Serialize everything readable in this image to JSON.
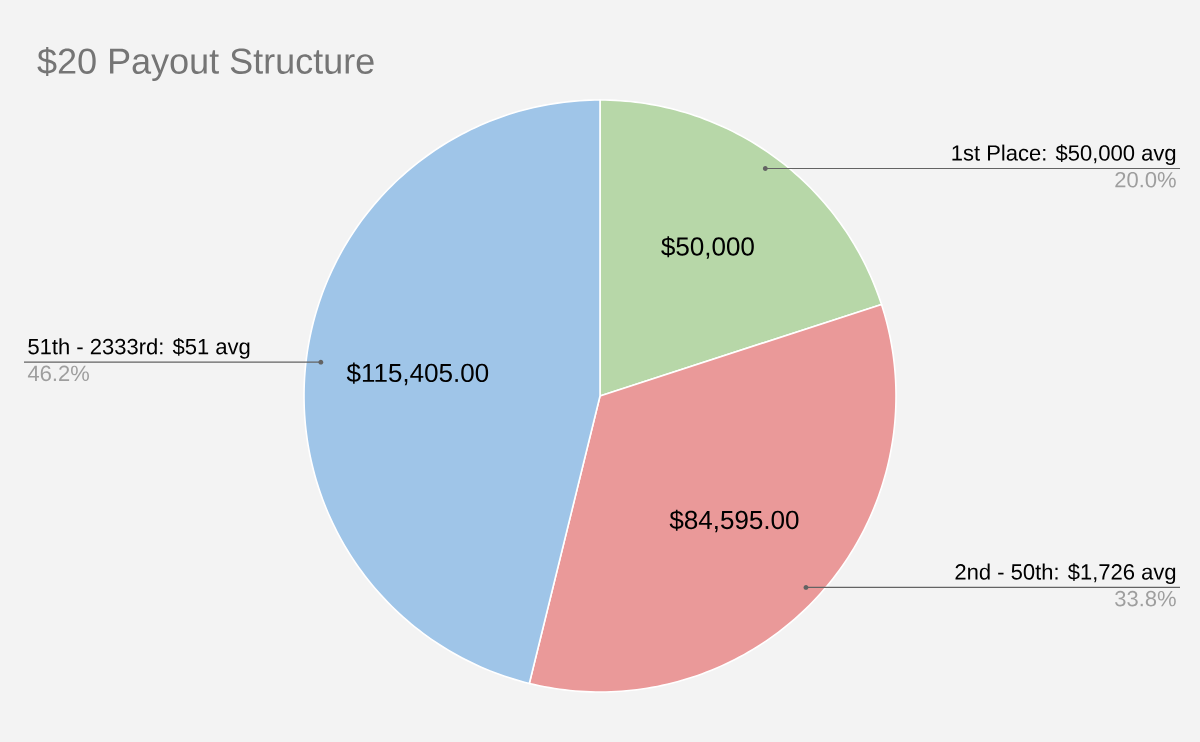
{
  "chart_data": {
    "type": "pie",
    "title": "$20 Payout Structure",
    "categories": [
      "1st Place: $50,000 avg",
      "2nd - 50th: $1,726 avg",
      "51th - 2333rd: $51 avg"
    ],
    "values": [
      50000,
      84595,
      115405
    ],
    "value_labels": [
      "$50,000",
      "$84,595.00",
      "$115,405.00"
    ],
    "colors": [
      "#b7d7a8",
      "#ea9999",
      "#9fc5e8"
    ],
    "annotations": [
      "20.0%",
      "33.8%",
      "46.2%"
    ]
  }
}
